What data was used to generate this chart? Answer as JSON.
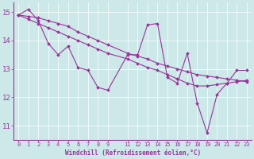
{
  "xlabel": "Windchill (Refroidissement éolien,°C)",
  "bg_color": "#cce8e8",
  "line_color": "#993399",
  "xlim_min": -0.5,
  "xlim_max": 23.5,
  "ylim_min": 10.5,
  "ylim_max": 15.35,
  "yticks": [
    11,
    12,
    13,
    14,
    15
  ],
  "xticks": [
    0,
    1,
    2,
    3,
    4,
    5,
    6,
    7,
    8,
    9,
    11,
    12,
    13,
    14,
    15,
    16,
    17,
    18,
    19,
    20,
    21,
    22,
    23
  ],
  "series1_x": [
    0,
    1,
    2,
    3,
    4,
    5,
    6,
    7,
    8,
    9,
    11,
    12,
    13,
    14,
    15,
    16,
    17,
    18,
    19,
    20,
    21,
    22,
    23
  ],
  "series1_y": [
    14.9,
    15.1,
    14.7,
    13.9,
    13.5,
    13.8,
    13.05,
    12.95,
    12.35,
    12.25,
    13.5,
    13.5,
    14.55,
    14.6,
    12.7,
    12.5,
    13.55,
    11.8,
    10.75,
    12.1,
    12.5,
    12.95,
    12.95
  ],
  "series2_x": [
    0,
    1,
    2,
    3,
    4,
    5,
    6,
    7,
    8,
    9,
    11,
    12,
    13,
    14,
    15,
    16,
    17,
    18,
    19,
    20,
    21,
    22,
    23
  ],
  "series2_y": [
    14.9,
    14.75,
    14.6,
    14.45,
    14.3,
    14.15,
    14.0,
    13.85,
    13.7,
    13.55,
    13.35,
    13.2,
    13.05,
    12.95,
    12.8,
    12.65,
    12.5,
    12.4,
    12.4,
    12.45,
    12.5,
    12.55,
    12.6
  ],
  "series3_x": [
    0,
    1,
    2,
    3,
    4,
    5,
    6,
    7,
    8,
    9,
    11,
    12,
    13,
    14,
    15,
    16,
    17,
    18,
    19,
    20,
    21,
    22,
    23
  ],
  "series3_y": [
    14.9,
    14.85,
    14.8,
    14.7,
    14.6,
    14.5,
    14.3,
    14.15,
    14.0,
    13.85,
    13.55,
    13.45,
    13.35,
    13.2,
    13.1,
    13.0,
    12.9,
    12.8,
    12.75,
    12.7,
    12.65,
    12.6,
    12.55
  ],
  "tick_fontsize": 5,
  "xlabel_fontsize": 5.5,
  "ylabel_fontsize": 6,
  "grid_color": "#b0d8d8",
  "spine_color": "#993399"
}
